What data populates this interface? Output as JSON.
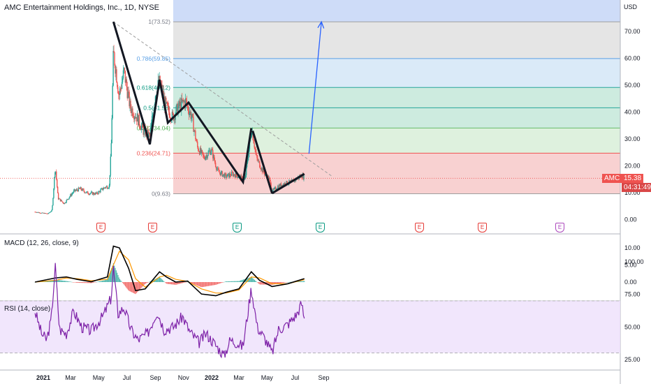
{
  "header": {
    "title": "AMC Entertainment Holdings, Inc., 1D, NYSE",
    "currency": "USD"
  },
  "price_badge": {
    "symbol": "AMC",
    "price": "15.38",
    "countdown": "04:31:49"
  },
  "fib_labels": [
    "1(73.52)",
    "0.786(59.85)",
    "0.618(49.12)",
    "0.5(41.58)",
    "0.382(34.04)",
    "0.236(24.71)",
    "0(9.63)"
  ],
  "earnings_markers": [
    "E",
    "E",
    "E",
    "E",
    "E",
    "E",
    "E"
  ],
  "panes": {
    "macd_label": "MACD (12, 26, close, 9)",
    "rsi_label": "RSI (14, close)"
  },
  "colors": {
    "up": "#26a69a",
    "down": "#ef5350",
    "macd": "#000000",
    "signal": "#ff9800",
    "rsi": "#7e22a8",
    "projection": "#2962ff",
    "fib_red": "#f7c9c9",
    "fib_green_light": "#d8efd8",
    "fib_green": "#c4e8d9",
    "fib_blue": "#d3e6f7",
    "fib_grey": "#e0e0e0",
    "fib_top": "#c9d8f7"
  },
  "chart_data": [
    {
      "type": "candlestick",
      "title": "AMC Entertainment Holdings, Inc., 1D, NYSE",
      "ylabel": "USD",
      "x_ticks": [
        "2021",
        "Mar",
        "May",
        "Jul",
        "Sep",
        "Nov",
        "2022",
        "Mar",
        "May",
        "Jul",
        "Sep"
      ],
      "y_ticks": [
        0,
        10,
        20,
        30,
        40,
        50,
        60,
        70
      ],
      "ylim": [
        -2,
        80
      ],
      "close_path": [
        [
          "2020-12-14",
          2.9
        ],
        [
          "2020-12-28",
          2.5
        ],
        [
          "2021-01-11",
          2.2
        ],
        [
          "2021-01-20",
          3.5
        ],
        [
          "2021-01-27",
          19.9
        ],
        [
          "2021-02-02",
          8.0
        ],
        [
          "2021-02-15",
          6.0
        ],
        [
          "2021-03-08",
          10.5
        ],
        [
          "2021-03-22",
          11.5
        ],
        [
          "2021-04-05",
          10.0
        ],
        [
          "2021-04-26",
          9.6
        ],
        [
          "2021-05-14",
          12.0
        ],
        [
          "2021-05-24",
          12.5
        ],
        [
          "2021-05-28",
          26.0
        ],
        [
          "2021-06-02",
          62.0
        ],
        [
          "2021-06-08",
          55.0
        ],
        [
          "2021-06-14",
          46.0
        ],
        [
          "2021-06-25",
          55.0
        ],
        [
          "2021-07-08",
          42.0
        ],
        [
          "2021-07-23",
          38.0
        ],
        [
          "2021-08-06",
          33.0
        ],
        [
          "2021-08-20",
          31.0
        ],
        [
          "2021-09-02",
          48.0
        ],
        [
          "2021-09-10",
          51.0
        ],
        [
          "2021-09-24",
          42.0
        ],
        [
          "2021-10-08",
          38.0
        ],
        [
          "2021-10-22",
          42.0
        ],
        [
          "2021-11-05",
          44.0
        ],
        [
          "2021-11-19",
          38.0
        ],
        [
          "2021-12-01",
          27.0
        ],
        [
          "2021-12-15",
          23.0
        ],
        [
          "2021-12-31",
          26.0
        ],
        [
          "2022-01-14",
          18.0
        ],
        [
          "2022-02-01",
          16.0
        ],
        [
          "2022-02-15",
          17.0
        ],
        [
          "2022-03-01",
          16.0
        ],
        [
          "2022-03-14",
          14.5
        ],
        [
          "2022-03-29",
          34.0
        ],
        [
          "2022-04-08",
          23.0
        ],
        [
          "2022-04-22",
          18.0
        ],
        [
          "2022-05-06",
          15.0
        ],
        [
          "2022-05-12",
          10.5
        ],
        [
          "2022-05-26",
          12.5
        ],
        [
          "2022-06-09",
          13.5
        ],
        [
          "2022-06-23",
          14.0
        ],
        [
          "2022-07-07",
          15.5
        ],
        [
          "2022-07-15",
          16.5
        ],
        [
          "2022-07-21",
          15.38
        ]
      ],
      "last_price": 15.38
    },
    {
      "type": "fibonacci_retracement",
      "levels": [
        {
          "ratio": 1,
          "price": 73.52
        },
        {
          "ratio": 0.786,
          "price": 59.85
        },
        {
          "ratio": 0.618,
          "price": 49.12
        },
        {
          "ratio": 0.5,
          "price": 41.58
        },
        {
          "ratio": 0.382,
          "price": 34.04
        },
        {
          "ratio": 0.236,
          "price": 24.71
        },
        {
          "ratio": 0,
          "price": 9.63
        }
      ]
    },
    {
      "type": "line",
      "name": "Trend annotations",
      "zigzag": [
        [
          "2021-06-02",
          73.52
        ],
        [
          "2021-08-20",
          28.0
        ],
        [
          "2021-09-10",
          52.0
        ],
        [
          "2021-09-28",
          36.0
        ],
        [
          "2021-11-12",
          43.5
        ],
        [
          "2022-03-10",
          14.0
        ],
        [
          "2022-03-28",
          34.0
        ]
      ],
      "segment_2": [
        [
          "2022-03-31",
          33.0
        ],
        [
          "2022-05-12",
          9.8
        ]
      ],
      "segment_3": [
        [
          "2022-05-12",
          9.8
        ],
        [
          "2022-07-21",
          17.0
        ]
      ],
      "dashed_trendline": [
        [
          "2021-06-02",
          73.52
        ],
        [
          "2022-09-20",
          16.0
        ]
      ],
      "projection_arrow": [
        [
          "2022-07-31",
          24.5
        ],
        [
          "2022-08-27",
          73.5
        ]
      ]
    },
    {
      "type": "line",
      "name": "MACD (12, 26, close, 9)",
      "y_ticks": [
        0.0,
        5.0,
        10.0
      ],
      "macd_path": [
        [
          "2020-12-14",
          0.0
        ],
        [
          "2021-01-27",
          1.2
        ],
        [
          "2021-02-20",
          1.5
        ],
        [
          "2021-03-15",
          0.8
        ],
        [
          "2021-04-15",
          0.1
        ],
        [
          "2021-05-20",
          1.5
        ],
        [
          "2021-06-02",
          10.5
        ],
        [
          "2021-06-15",
          10.0
        ],
        [
          "2021-07-05",
          4.0
        ],
        [
          "2021-07-20",
          -2.5
        ],
        [
          "2021-08-10",
          -2.0
        ],
        [
          "2021-09-10",
          3.0
        ],
        [
          "2021-09-25",
          1.5
        ],
        [
          "2021-10-15",
          0.0
        ],
        [
          "2021-11-10",
          0.3
        ],
        [
          "2021-12-10",
          -3.5
        ],
        [
          "2022-01-10",
          -4.0
        ],
        [
          "2022-02-01",
          -3.0
        ],
        [
          "2022-03-01",
          -2.0
        ],
        [
          "2022-03-28",
          3.0
        ],
        [
          "2022-04-15",
          0.5
        ],
        [
          "2022-05-12",
          -1.3
        ],
        [
          "2022-06-15",
          -0.5
        ],
        [
          "2022-07-21",
          1.0
        ]
      ],
      "signal_path": [
        [
          "2020-12-14",
          0.0
        ],
        [
          "2021-01-27",
          0.5
        ],
        [
          "2021-02-20",
          1.2
        ],
        [
          "2021-03-15",
          1.0
        ],
        [
          "2021-04-15",
          0.4
        ],
        [
          "2021-05-20",
          0.8
        ],
        [
          "2021-06-02",
          5.0
        ],
        [
          "2021-06-15",
          9.0
        ],
        [
          "2021-07-05",
          6.5
        ],
        [
          "2021-07-20",
          1.0
        ],
        [
          "2021-08-10",
          -1.5
        ],
        [
          "2021-09-10",
          1.5
        ],
        [
          "2021-09-25",
          2.0
        ],
        [
          "2021-10-15",
          0.8
        ],
        [
          "2021-11-10",
          0.2
        ],
        [
          "2021-12-10",
          -2.0
        ],
        [
          "2022-01-10",
          -3.2
        ],
        [
          "2022-02-01",
          -3.2
        ],
        [
          "2022-03-01",
          -2.3
        ],
        [
          "2022-03-28",
          1.5
        ],
        [
          "2022-04-15",
          1.2
        ],
        [
          "2022-05-12",
          -0.5
        ],
        [
          "2022-06-15",
          -0.5
        ],
        [
          "2022-07-21",
          0.7
        ]
      ]
    },
    {
      "type": "line",
      "name": "RSI (14, close)",
      "y_ticks": [
        25.0,
        50.0,
        75.0,
        100.0
      ],
      "bands": [
        30,
        70
      ],
      "rsi_path": [
        [
          "2020-12-14",
          62
        ],
        [
          "2020-12-28",
          45
        ],
        [
          "2021-01-08",
          40
        ],
        [
          "2021-01-18",
          55
        ],
        [
          "2021-01-27",
          97
        ],
        [
          "2021-02-05",
          48
        ],
        [
          "2021-02-20",
          45
        ],
        [
          "2021-03-08",
          62
        ],
        [
          "2021-03-25",
          50
        ],
        [
          "2021-04-15",
          47
        ],
        [
          "2021-05-10",
          58
        ],
        [
          "2021-05-28",
          72
        ],
        [
          "2021-06-02",
          95
        ],
        [
          "2021-06-12",
          60
        ],
        [
          "2021-06-25",
          65
        ],
        [
          "2021-07-10",
          48
        ],
        [
          "2021-07-25",
          40
        ],
        [
          "2021-08-15",
          45
        ],
        [
          "2021-09-05",
          62
        ],
        [
          "2021-09-20",
          48
        ],
        [
          "2021-10-10",
          50
        ],
        [
          "2021-10-30",
          58
        ],
        [
          "2021-11-15",
          46
        ],
        [
          "2021-12-05",
          38
        ],
        [
          "2021-12-20",
          45
        ],
        [
          "2022-01-10",
          36
        ],
        [
          "2022-01-28",
          28
        ],
        [
          "2022-02-10",
          40
        ],
        [
          "2022-02-24",
          38
        ],
        [
          "2022-03-10",
          35
        ],
        [
          "2022-03-28",
          80
        ],
        [
          "2022-04-10",
          50
        ],
        [
          "2022-04-28",
          40
        ],
        [
          "2022-05-12",
          30
        ],
        [
          "2022-05-26",
          48
        ],
        [
          "2022-06-15",
          52
        ],
        [
          "2022-07-05",
          60
        ],
        [
          "2022-07-15",
          68
        ],
        [
          "2022-07-21",
          56
        ]
      ]
    }
  ]
}
